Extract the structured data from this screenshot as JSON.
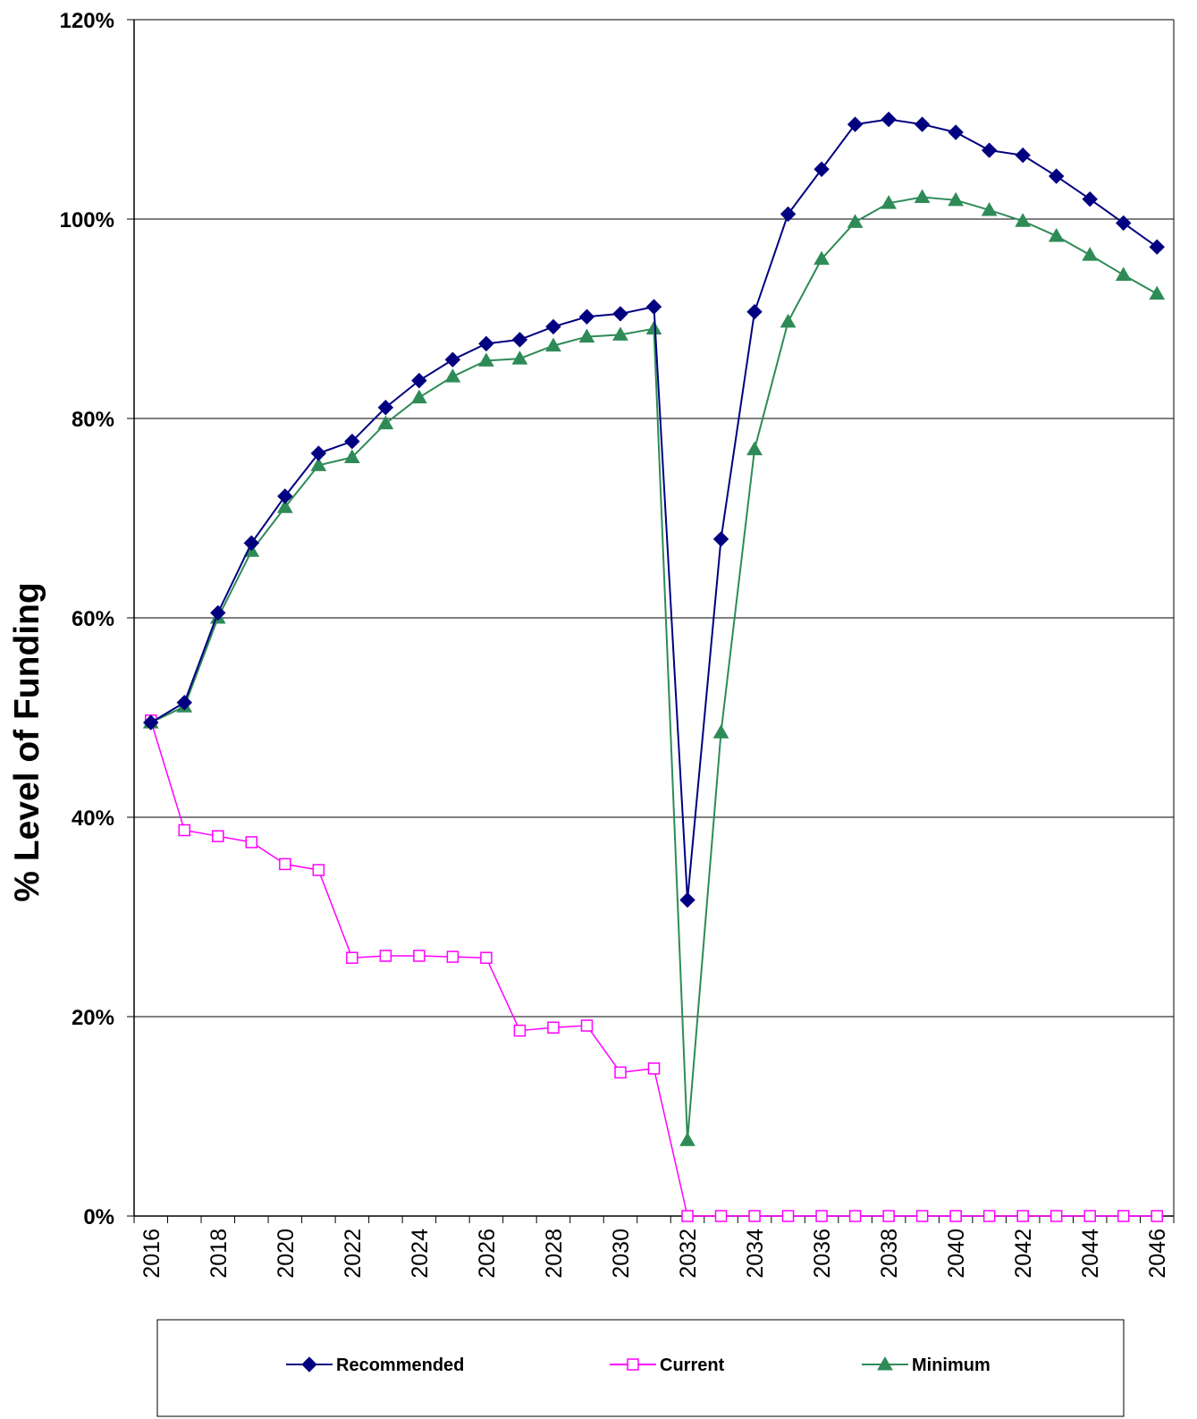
{
  "chart_data": {
    "type": "line",
    "title": "",
    "xlabel": "",
    "ylabel": "% Level of Funding",
    "ylim": [
      0,
      1.2
    ],
    "yticks": [
      {
        "value": 0,
        "label": "0%"
      },
      {
        "value": 0.2,
        "label": "20%"
      },
      {
        "value": 0.4,
        "label": "40%"
      },
      {
        "value": 0.6,
        "label": "60%"
      },
      {
        "value": 0.8,
        "label": "80%"
      },
      {
        "value": 1.0,
        "label": "100%"
      },
      {
        "value": 1.2,
        "label": "120%"
      }
    ],
    "grid": "horizontal",
    "legend_position": "bottom",
    "x": [
      2016,
      2017,
      2018,
      2019,
      2020,
      2021,
      2022,
      2023,
      2024,
      2025,
      2026,
      2027,
      2028,
      2029,
      2030,
      2031,
      2032,
      2033,
      2034,
      2035,
      2036,
      2037,
      2038,
      2039,
      2040,
      2041,
      2042,
      2043,
      2044,
      2045,
      2046
    ],
    "xtick_labels": [
      "2016",
      "2018",
      "2020",
      "2022",
      "2024",
      "2026",
      "2028",
      "2030",
      "2032",
      "2034",
      "2036",
      "2038",
      "2040",
      "2042",
      "2044",
      "2046"
    ],
    "series": [
      {
        "name": "Recommended",
        "color": "#000080",
        "marker": "diamond",
        "values": [
          0.495,
          0.515,
          0.605,
          0.675,
          0.722,
          0.765,
          0.777,
          0.811,
          0.838,
          0.859,
          0.875,
          0.879,
          0.892,
          0.902,
          0.905,
          0.912,
          0.317,
          0.679,
          0.907,
          1.005,
          1.05,
          1.095,
          1.1,
          1.095,
          1.087,
          1.069,
          1.064,
          1.043,
          1.02,
          0.996,
          0.972
        ]
      },
      {
        "name": "Current",
        "color": "#ff00ff",
        "marker": "square",
        "values": [
          0.497,
          0.387,
          0.381,
          0.375,
          0.353,
          0.347,
          0.259,
          0.261,
          0.261,
          0.26,
          0.259,
          0.186,
          0.189,
          0.191,
          0.144,
          0.148,
          0.0,
          0.0,
          0.0,
          0.0,
          0.0,
          0.0,
          0.0,
          0.0,
          0.0,
          0.0,
          0.0,
          0.0,
          0.0,
          0.0,
          0.0
        ]
      },
      {
        "name": "Minimum",
        "color": "#2e8b57",
        "marker": "triangle",
        "values": [
          0.495,
          0.511,
          0.6,
          0.667,
          0.711,
          0.753,
          0.761,
          0.795,
          0.821,
          0.842,
          0.858,
          0.86,
          0.873,
          0.882,
          0.884,
          0.89,
          0.076,
          0.485,
          0.769,
          0.897,
          0.96,
          0.997,
          1.016,
          1.022,
          1.019,
          1.009,
          0.998,
          0.983,
          0.964,
          0.944,
          0.925
        ]
      }
    ]
  }
}
